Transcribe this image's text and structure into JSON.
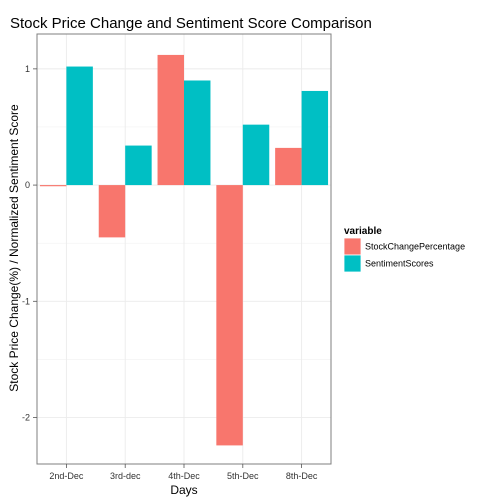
{
  "chart_data": {
    "type": "bar",
    "title": "Stock Price Change and Sentiment Score Comparison",
    "xlabel": "Days",
    "ylabel": "Stock Price Change(%) / Normalized Sentiment Score",
    "categories": [
      "2nd-Dec",
      "3rd-dec",
      "4th-Dec",
      "5th-Dec",
      "8th-Dec"
    ],
    "series": [
      {
        "name": "StockChangePercentage",
        "color": "#F8766D",
        "values": [
          -0.01,
          -0.45,
          1.12,
          -2.24,
          0.32
        ]
      },
      {
        "name": "SentimentScores",
        "color": "#00BFC4",
        "values": [
          1.02,
          0.34,
          0.9,
          0.52,
          0.81
        ]
      }
    ],
    "yticks": [
      -2,
      -1,
      0,
      1
    ],
    "ylim": [
      -2.4,
      1.3
    ],
    "grid": true,
    "legend": {
      "title": "variable",
      "placement": "right"
    }
  }
}
